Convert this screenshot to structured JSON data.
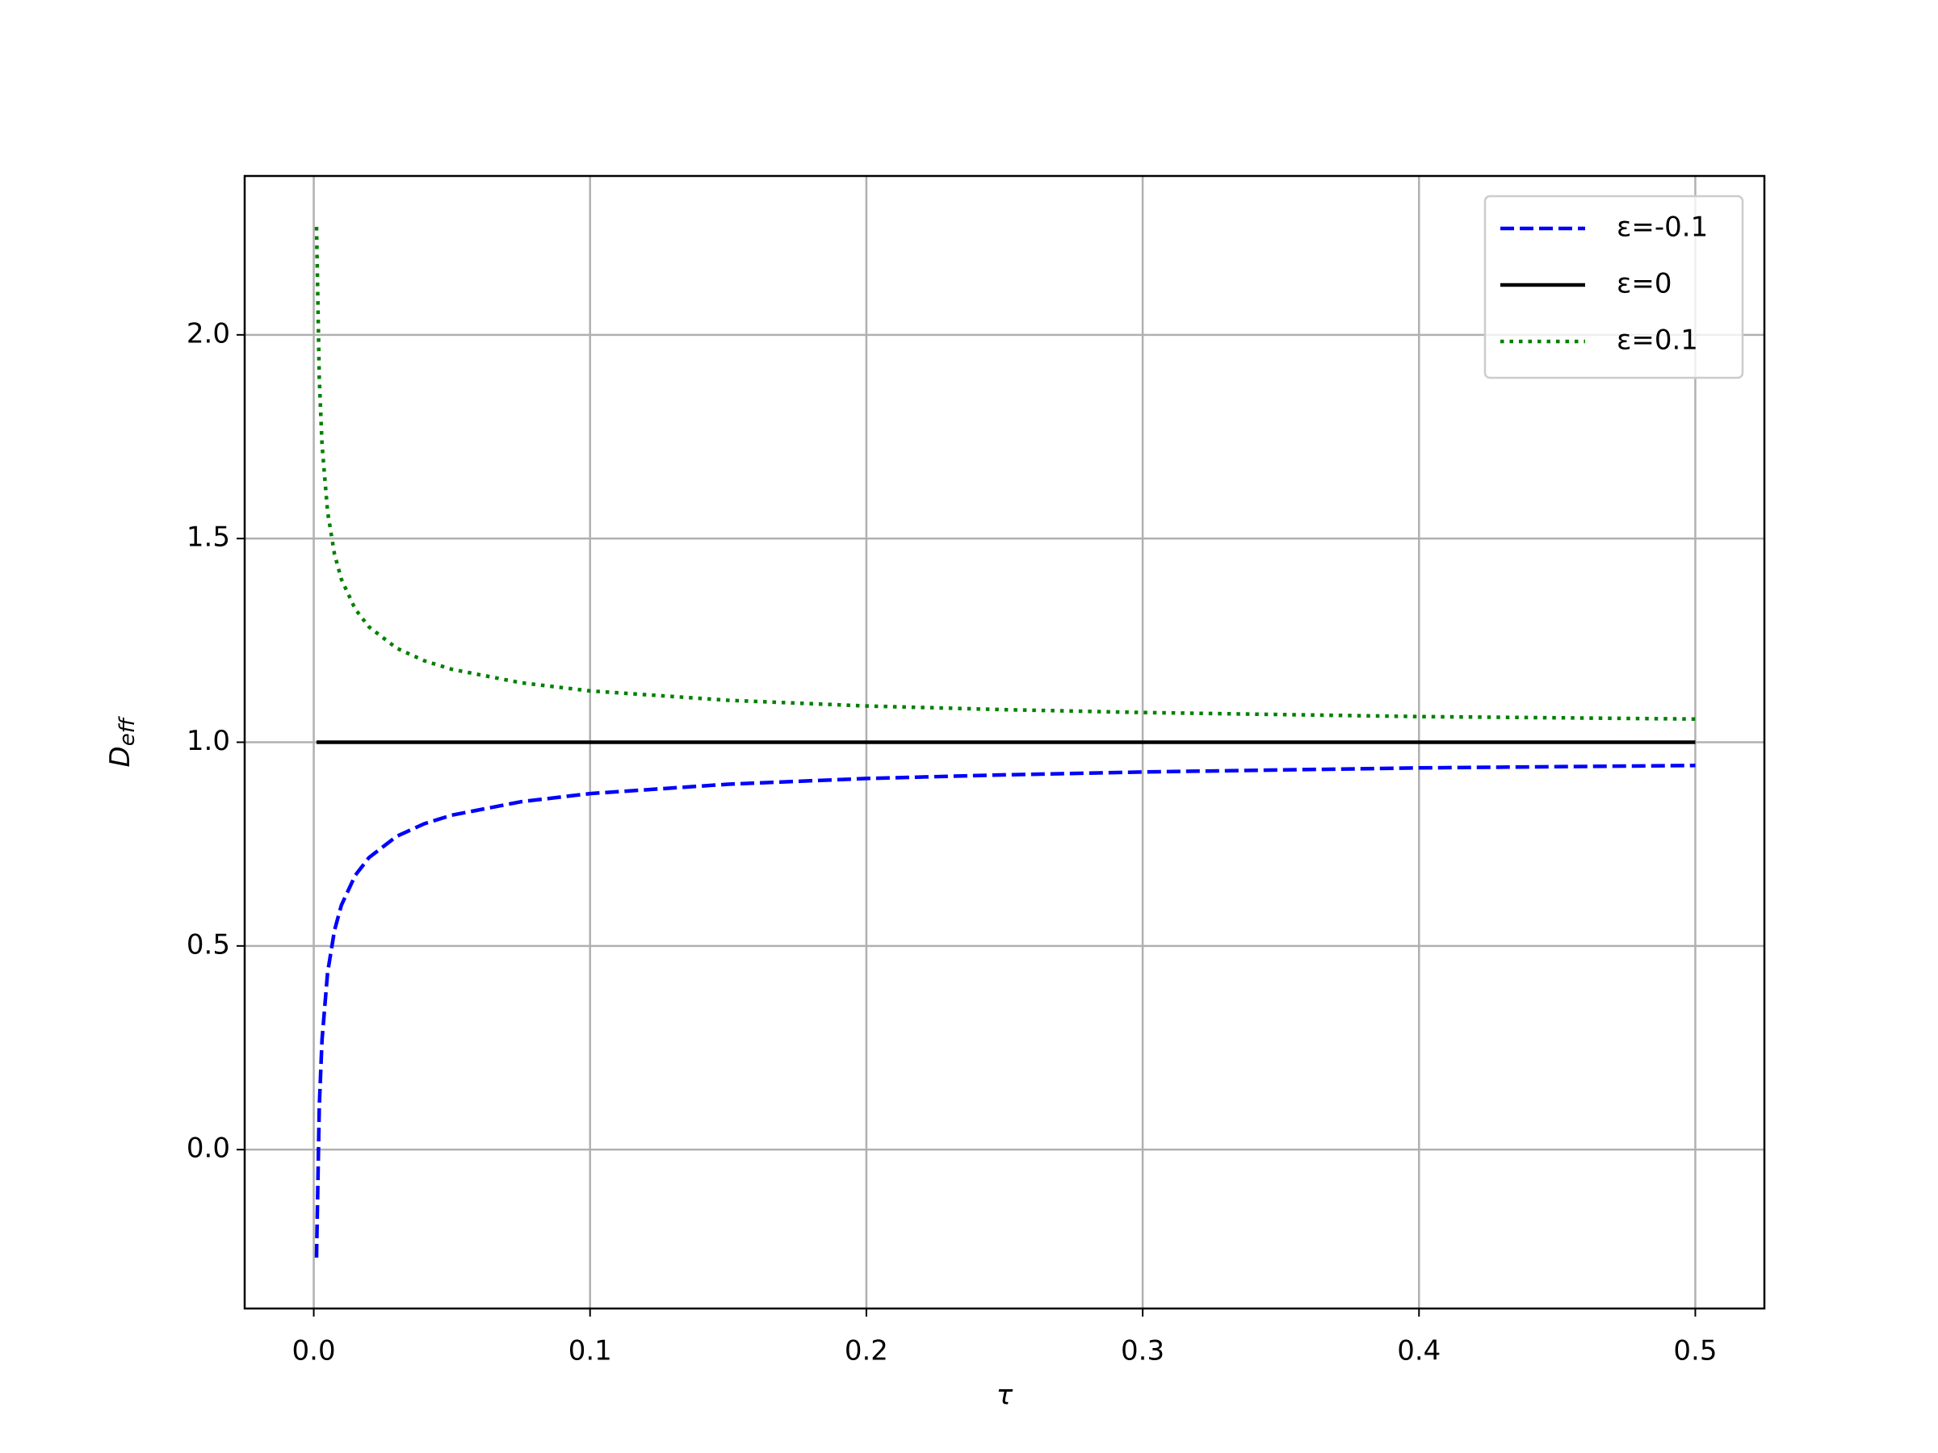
{
  "chart_data": {
    "type": "line",
    "xlabel": "τ",
    "ylabel": "D",
    "ylabel_sub": "eff",
    "x": [
      0.001,
      0.002,
      0.003,
      0.005,
      0.0075,
      0.01,
      0.015,
      0.02,
      0.03,
      0.04,
      0.05,
      0.075,
      0.1,
      0.15,
      0.2,
      0.25,
      0.3,
      0.35,
      0.4,
      0.45,
      0.5
    ],
    "series": [
      {
        "name": "ε=-0.1",
        "color": "#0000ff",
        "style": "dashed",
        "values": [
          -0.265,
          0.106,
          0.27,
          0.434,
          0.538,
          0.6,
          0.673,
          0.717,
          0.769,
          0.8,
          0.821,
          0.854,
          0.874,
          0.897,
          0.911,
          0.92,
          0.927,
          0.932,
          0.937,
          0.94,
          0.943
        ]
      },
      {
        "name": "ε=0",
        "color": "#000000",
        "style": "solid",
        "values": [
          1,
          1,
          1,
          1,
          1,
          1,
          1,
          1,
          1,
          1,
          1,
          1,
          1,
          1,
          1,
          1,
          1,
          1,
          1,
          1,
          1
        ]
      },
      {
        "name": "ε=0.1",
        "color": "#008000",
        "style": "dotted",
        "values": [
          2.265,
          1.894,
          1.73,
          1.566,
          1.462,
          1.4,
          1.327,
          1.283,
          1.231,
          1.2,
          1.179,
          1.146,
          1.126,
          1.103,
          1.089,
          1.08,
          1.073,
          1.068,
          1.063,
          1.06,
          1.057
        ]
      }
    ],
    "xlim": [
      -0.025,
      0.525
    ],
    "ylim": [
      -0.39,
      2.39
    ],
    "xticks": [
      {
        "value": 0,
        "label": "0.0"
      },
      0.1,
      0.2,
      0.3,
      0.4,
      0.5
    ],
    "yticks": [
      {
        "value": 0,
        "label": "0.0"
      },
      0.5,
      {
        "value": 1,
        "label": "1.0"
      },
      1.5,
      {
        "value": 2,
        "label": "2.0"
      }
    ],
    "grid": true,
    "legend": "upper right"
  }
}
